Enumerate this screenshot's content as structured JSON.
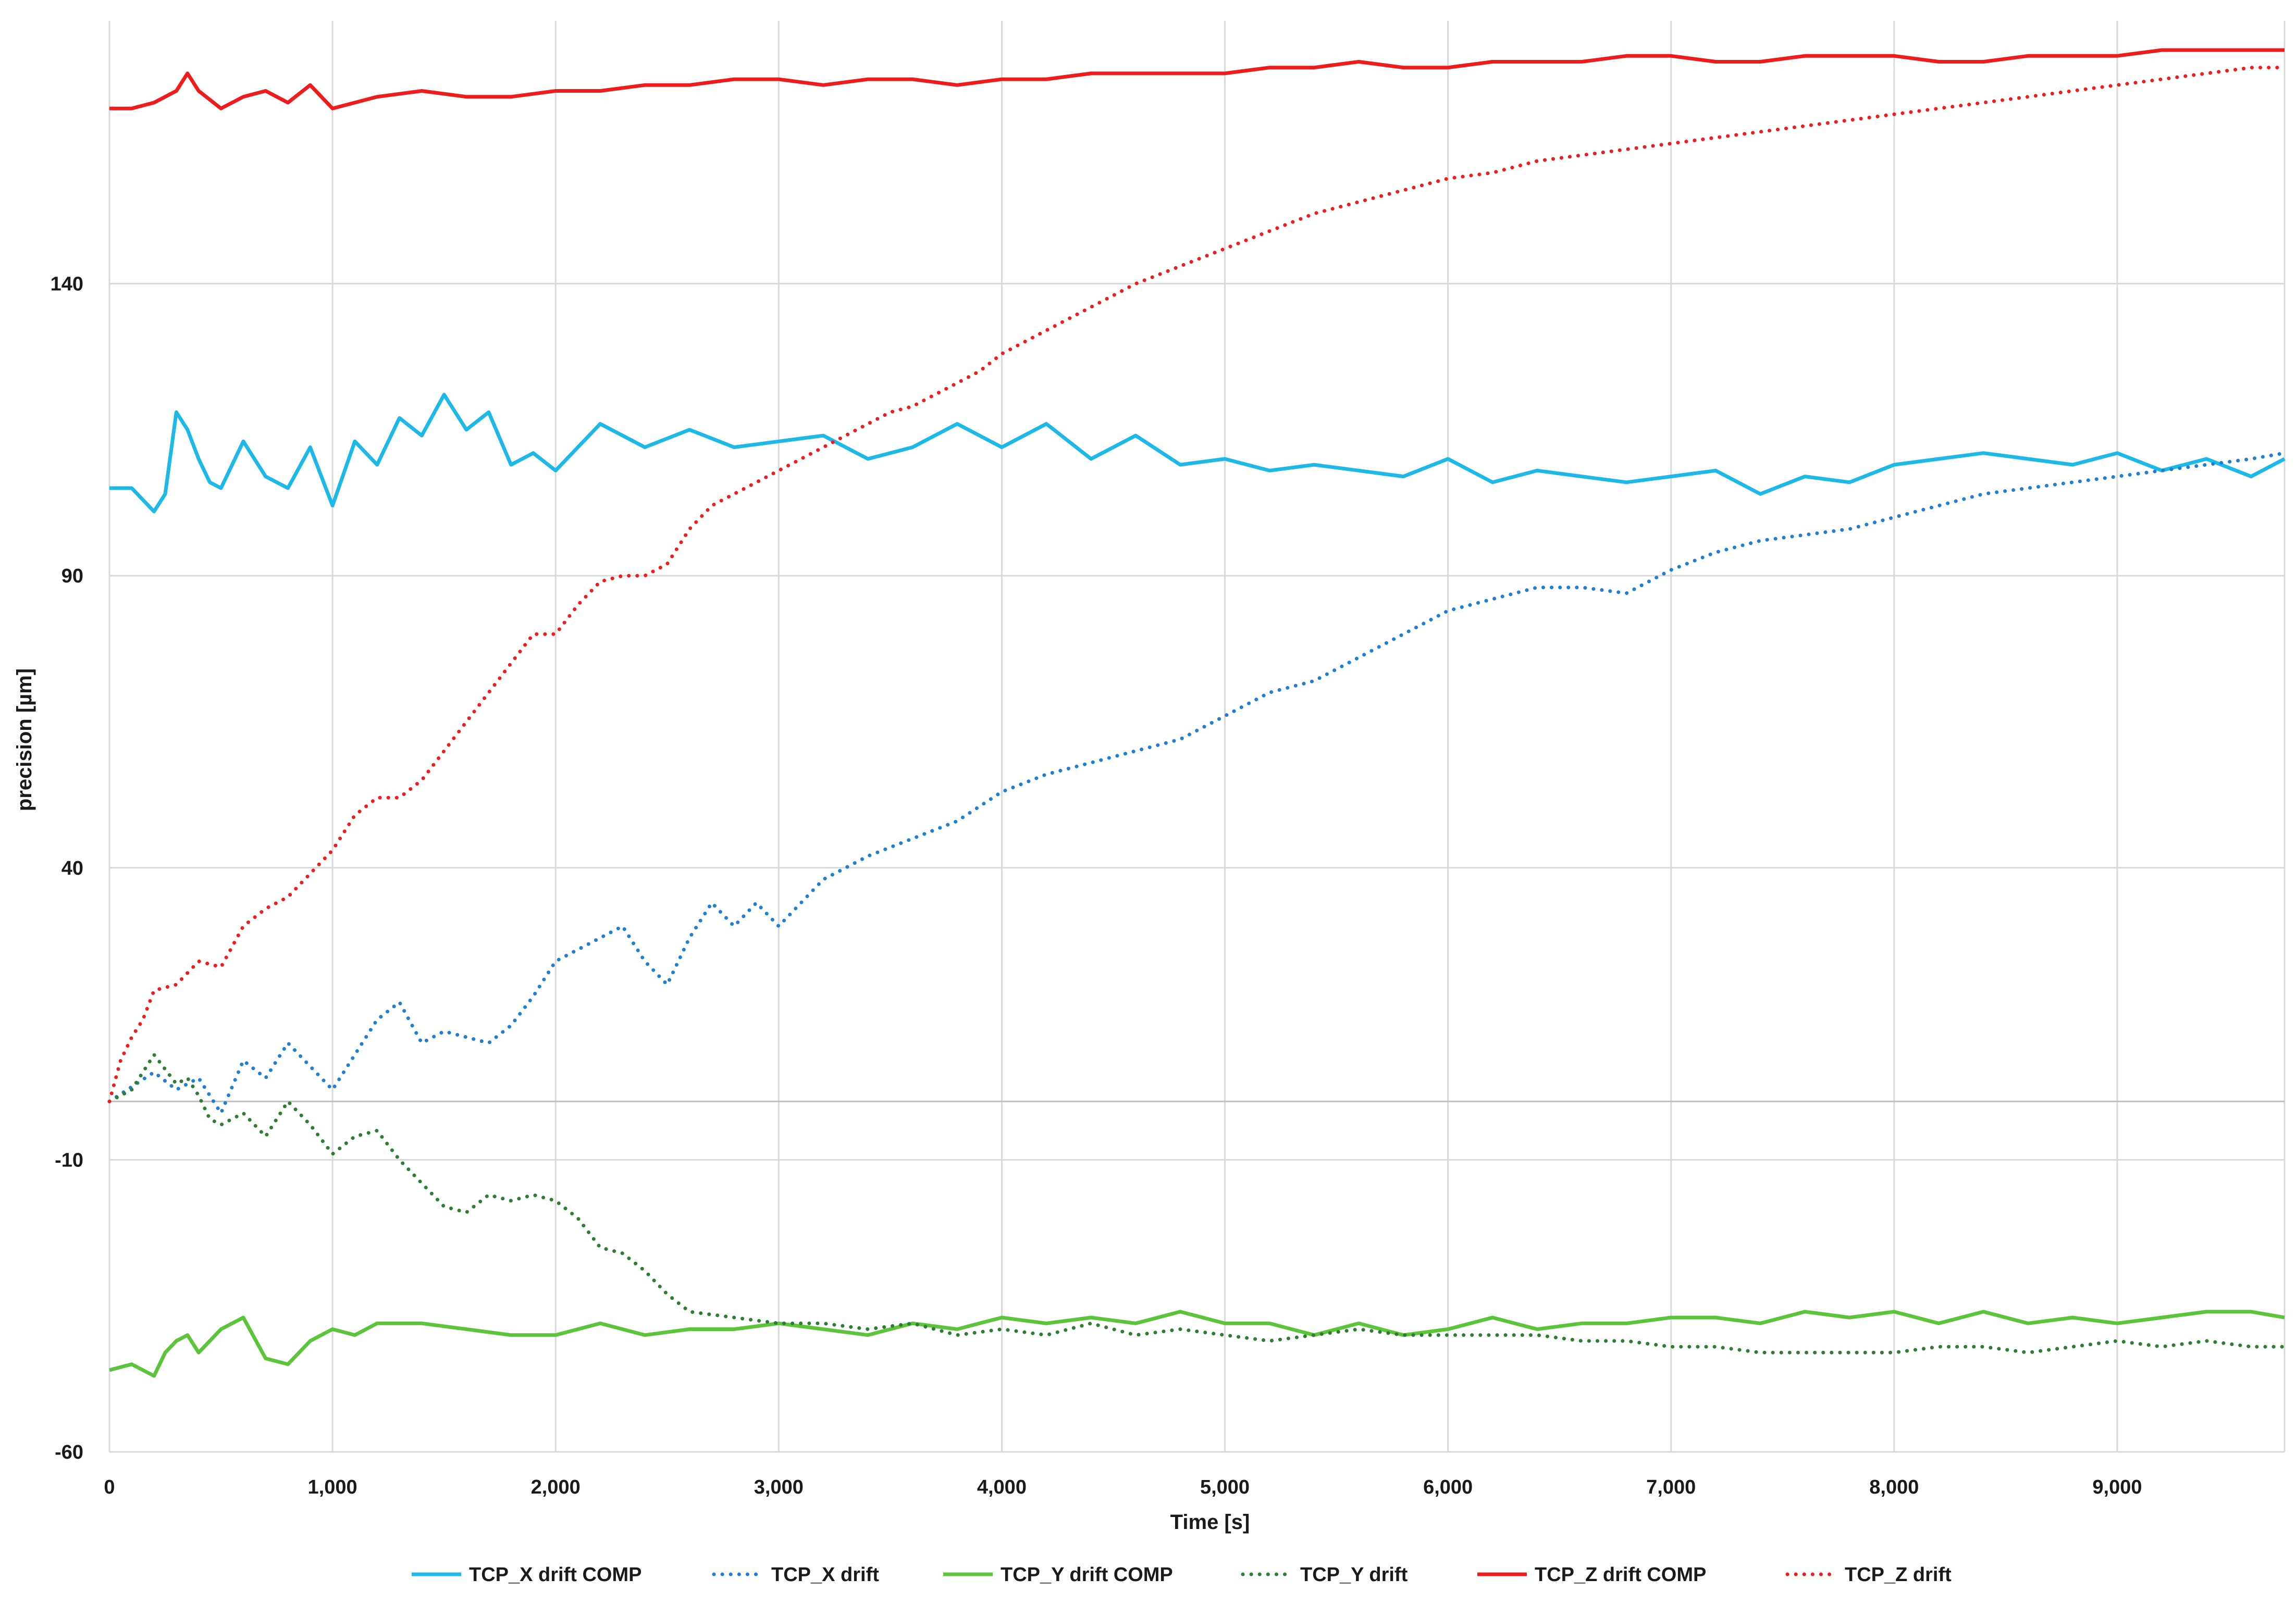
{
  "chart_data": {
    "type": "line",
    "title": "",
    "xlabel": "Time [s]",
    "ylabel": "precision [µm]",
    "xlim": [
      0,
      9750
    ],
    "ylim": [
      -60,
      185
    ],
    "x_ticks": [
      0,
      1000,
      2000,
      3000,
      4000,
      5000,
      6000,
      7000,
      8000,
      9000
    ],
    "x_tick_labels": [
      "0",
      "1,000",
      "2,000",
      "3,000",
      "4,000",
      "5,000",
      "6,000",
      "7,000",
      "8,000",
      "9,000"
    ],
    "y_ticks": [
      -60,
      -10,
      40,
      90,
      140
    ],
    "y_tick_labels": [
      "-60",
      "-10",
      "40",
      "90",
      "140"
    ],
    "grid": true,
    "legend_position": "bottom",
    "series": [
      {
        "name": "TCP_X drift COMP",
        "color": "#1cb8e6",
        "style": "solid",
        "x": [
          0,
          100,
          200,
          250,
          300,
          350,
          400,
          450,
          500,
          600,
          700,
          800,
          900,
          1000,
          1100,
          1200,
          1300,
          1400,
          1500,
          1600,
          1700,
          1800,
          1900,
          2000,
          2200,
          2400,
          2600,
          2800,
          3000,
          3200,
          3400,
          3600,
          3800,
          4000,
          4200,
          4400,
          4600,
          4800,
          5000,
          5200,
          5400,
          5600,
          5800,
          6000,
          6200,
          6400,
          6600,
          6800,
          7000,
          7200,
          7400,
          7600,
          7800,
          8000,
          8200,
          8400,
          8600,
          8800,
          9000,
          9200,
          9400,
          9600,
          9750
        ],
        "values": [
          105,
          105,
          101,
          104,
          118,
          115,
          110,
          106,
          105,
          113,
          107,
          105,
          112,
          102,
          113,
          109,
          117,
          114,
          121,
          115,
          118,
          109,
          111,
          108,
          116,
          112,
          115,
          112,
          113,
          114,
          110,
          112,
          116,
          112,
          116,
          110,
          114,
          109,
          110,
          108,
          109,
          108,
          107,
          110,
          106,
          108,
          107,
          106,
          107,
          108,
          104,
          107,
          106,
          109,
          110,
          111,
          110,
          109,
          111,
          108,
          110,
          107,
          110
        ]
      },
      {
        "name": "TCP_X drift",
        "color": "#1f7fd1",
        "style": "dotted",
        "x": [
          0,
          200,
          300,
          400,
          500,
          600,
          700,
          800,
          900,
          1000,
          1100,
          1200,
          1300,
          1400,
          1500,
          1600,
          1700,
          1800,
          1900,
          2000,
          2100,
          2200,
          2300,
          2400,
          2500,
          2600,
          2700,
          2800,
          2900,
          3000,
          3200,
          3400,
          3600,
          3800,
          4000,
          4200,
          4400,
          4600,
          4800,
          5000,
          5200,
          5400,
          5600,
          5800,
          6000,
          6200,
          6400,
          6600,
          6800,
          7000,
          7200,
          7400,
          7600,
          7800,
          8000,
          8200,
          8400,
          8600,
          8800,
          9000,
          9200,
          9400,
          9600,
          9750
        ],
        "values": [
          0,
          5,
          2,
          4,
          -2,
          7,
          4,
          10,
          6,
          2,
          8,
          14,
          17,
          10,
          12,
          11,
          10,
          13,
          18,
          24,
          26,
          28,
          30,
          24,
          20,
          28,
          34,
          30,
          34,
          30,
          38,
          42,
          45,
          48,
          53,
          56,
          58,
          60,
          62,
          66,
          70,
          72,
          76,
          80,
          84,
          86,
          88,
          88,
          87,
          91,
          94,
          96,
          97,
          98,
          100,
          102,
          104,
          105,
          106,
          107,
          108,
          109,
          110,
          111
        ]
      },
      {
        "name": "TCP_Y drift COMP",
        "color": "#5bc43b",
        "style": "solid",
        "x": [
          0,
          100,
          200,
          250,
          300,
          350,
          400,
          500,
          600,
          700,
          800,
          900,
          1000,
          1100,
          1200,
          1400,
          1600,
          1800,
          2000,
          2200,
          2400,
          2600,
          2800,
          3000,
          3200,
          3400,
          3600,
          3800,
          4000,
          4200,
          4400,
          4600,
          4800,
          5000,
          5200,
          5400,
          5600,
          5800,
          6000,
          6200,
          6400,
          6600,
          6800,
          7000,
          7200,
          7400,
          7600,
          7800,
          8000,
          8200,
          8400,
          8600,
          8800,
          9000,
          9200,
          9400,
          9600,
          9750
        ],
        "values": [
          -46,
          -45,
          -47,
          -43,
          -41,
          -40,
          -43,
          -39,
          -37,
          -44,
          -45,
          -41,
          -39,
          -40,
          -38,
          -38,
          -39,
          -40,
          -40,
          -38,
          -40,
          -39,
          -39,
          -38,
          -39,
          -40,
          -38,
          -39,
          -37,
          -38,
          -37,
          -38,
          -36,
          -38,
          -38,
          -40,
          -38,
          -40,
          -39,
          -37,
          -39,
          -38,
          -38,
          -37,
          -37,
          -38,
          -36,
          -37,
          -36,
          -38,
          -36,
          -38,
          -37,
          -38,
          -37,
          -36,
          -36,
          -37
        ]
      },
      {
        "name": "TCP_Y drift",
        "color": "#2e7d32",
        "style": "dotted",
        "x": [
          0,
          100,
          200,
          300,
          350,
          400,
          450,
          500,
          600,
          700,
          800,
          900,
          1000,
          1100,
          1200,
          1300,
          1400,
          1500,
          1600,
          1700,
          1800,
          1900,
          2000,
          2100,
          2200,
          2300,
          2400,
          2500,
          2600,
          2800,
          3000,
          3200,
          3400,
          3600,
          3800,
          4000,
          4200,
          4400,
          4600,
          4800,
          5000,
          5200,
          5400,
          5600,
          5800,
          6000,
          6200,
          6400,
          6600,
          6800,
          7000,
          7200,
          7400,
          7600,
          7800,
          8000,
          8200,
          8400,
          8600,
          8800,
          9000,
          9200,
          9400,
          9600,
          9750
        ],
        "values": [
          0,
          2,
          8,
          3,
          4,
          1,
          -3,
          -4,
          -2,
          -6,
          0,
          -4,
          -9,
          -6,
          -5,
          -10,
          -14,
          -18,
          -19,
          -16,
          -17,
          -16,
          -17,
          -20,
          -25,
          -26,
          -29,
          -33,
          -36,
          -37,
          -38,
          -38,
          -39,
          -38,
          -40,
          -39,
          -40,
          -38,
          -40,
          -39,
          -40,
          -41,
          -40,
          -39,
          -40,
          -40,
          -40,
          -40,
          -41,
          -41,
          -42,
          -42,
          -43,
          -43,
          -43,
          -43,
          -42,
          -42,
          -43,
          -42,
          -41,
          -42,
          -41,
          -42,
          -42
        ]
      },
      {
        "name": "TCP_Z drift COMP",
        "color": "#ee1c1c",
        "style": "solid",
        "x": [
          0,
          100,
          200,
          300,
          350,
          400,
          500,
          600,
          700,
          800,
          900,
          1000,
          1200,
          1400,
          1600,
          1800,
          2000,
          2200,
          2400,
          2600,
          2800,
          3000,
          3200,
          3400,
          3600,
          3800,
          4000,
          4200,
          4400,
          4600,
          4800,
          5000,
          5200,
          5400,
          5600,
          5800,
          6000,
          6200,
          6400,
          6600,
          6800,
          7000,
          7200,
          7400,
          7600,
          7800,
          8000,
          8200,
          8400,
          8600,
          8800,
          9000,
          9200,
          9400,
          9600,
          9750
        ],
        "values": [
          170,
          170,
          171,
          173,
          176,
          173,
          170,
          172,
          173,
          171,
          174,
          170,
          172,
          173,
          172,
          172,
          173,
          173,
          174,
          174,
          175,
          175,
          174,
          175,
          175,
          174,
          175,
          175,
          176,
          176,
          176,
          176,
          177,
          177,
          178,
          177,
          177,
          178,
          178,
          178,
          179,
          179,
          178,
          178,
          179,
          179,
          179,
          178,
          178,
          179,
          179,
          179,
          180,
          180,
          180,
          180
        ]
      },
      {
        "name": "TCP_Z drift",
        "color": "#ee1c1c",
        "style": "dotted",
        "x": [
          0,
          50,
          100,
          150,
          200,
          300,
          400,
          500,
          600,
          700,
          800,
          900,
          1000,
          1100,
          1200,
          1300,
          1400,
          1500,
          1600,
          1700,
          1800,
          1900,
          2000,
          2100,
          2200,
          2300,
          2400,
          2500,
          2600,
          2700,
          2800,
          2900,
          3000,
          3100,
          3200,
          3300,
          3400,
          3500,
          3600,
          3700,
          3800,
          3900,
          4000,
          4200,
          4400,
          4600,
          4800,
          5000,
          5200,
          5400,
          5600,
          5800,
          6000,
          6200,
          6400,
          6600,
          6800,
          7000,
          7200,
          7400,
          7600,
          7800,
          8000,
          8200,
          8400,
          8600,
          8800,
          9000,
          9200,
          9400,
          9600,
          9750
        ],
        "values": [
          0,
          7,
          11,
          14,
          19,
          20,
          24,
          23,
          30,
          33,
          35,
          39,
          43,
          49,
          52,
          52,
          55,
          60,
          65,
          70,
          75,
          80,
          80,
          85,
          89,
          90,
          90,
          92,
          98,
          102,
          104,
          106,
          108,
          110,
          112,
          114,
          116,
          118,
          119,
          121,
          123,
          125,
          128,
          132,
          136,
          140,
          143,
          146,
          149,
          152,
          154,
          156,
          158,
          159,
          161,
          162,
          163,
          164,
          165,
          166,
          167,
          168,
          169,
          170,
          171,
          172,
          173,
          174,
          175,
          176,
          177,
          177
        ]
      }
    ]
  }
}
